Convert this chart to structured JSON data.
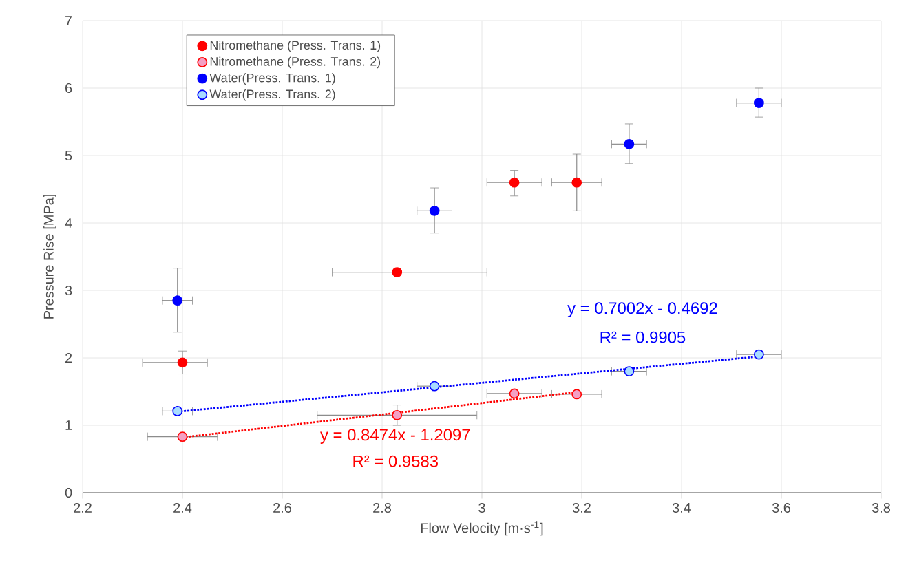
{
  "chart_data": {
    "type": "scatter",
    "xlabel": "Flow Velocity [m·s$^{-1}$]",
    "ylabel": "Pressure Rise [MPa]",
    "xlim": [
      2.2,
      3.8
    ],
    "xticks": [
      2.2,
      2.4,
      2.6,
      2.8,
      3,
      3.2,
      3.4,
      3.6,
      3.8
    ],
    "ylim": [
      0,
      7
    ],
    "yticks": [
      0,
      1,
      2,
      3,
      4,
      5,
      6,
      7
    ],
    "grid": true,
    "legend": "top left",
    "marker": "circle",
    "series": [
      {
        "name": "Nitromethane (Press. Trans. 1)",
        "color": "#ff0000",
        "x": [
          2.4,
          2.83,
          3.065,
          3.19
        ],
        "values": [
          1.93,
          3.27,
          4.6,
          4.6
        ],
        "errors": [
          [
            1.76,
            2.1
          ],
          null,
          [
            4.4,
            4.78
          ],
          [
            4.18,
            5.02
          ]
        ],
        "xerrors": [
          [
            2.32,
            2.45
          ],
          [
            2.7,
            3.01
          ],
          [
            3.01,
            3.12
          ],
          [
            3.14,
            3.24
          ]
        ]
      },
      {
        "name": "Nitromethane (Press. Trans. 2)",
        "color": "#f4a0c4",
        "x": [
          2.4,
          2.83,
          3.065,
          3.19
        ],
        "values": [
          0.83,
          1.15,
          1.47,
          1.46
        ],
        "errors": [
          null,
          [
            1.0,
            1.3
          ],
          null,
          null
        ],
        "xerrors": [
          [
            2.33,
            2.47
          ],
          [
            2.67,
            2.99
          ],
          [
            3.01,
            3.12
          ],
          [
            3.14,
            3.24
          ]
        ]
      },
      {
        "name": "Water(Press. Trans. 1)",
        "color": "#0000ff",
        "x": [
          2.39,
          2.905,
          3.295,
          3.555
        ],
        "values": [
          2.85,
          4.18,
          5.17,
          5.78
        ],
        "errors": [
          [
            2.38,
            3.33
          ],
          [
            3.85,
            4.52
          ],
          [
            4.88,
            5.47
          ],
          [
            5.57,
            6.0
          ]
        ],
        "xerrors": [
          [
            2.36,
            2.42
          ],
          [
            2.87,
            2.94
          ],
          [
            3.26,
            3.33
          ],
          [
            3.51,
            3.6
          ]
        ]
      },
      {
        "name": "Water(Press. Trans. 2)",
        "color": "#a8dcff",
        "x": [
          2.39,
          2.905,
          3.295,
          3.555
        ],
        "values": [
          1.21,
          1.58,
          1.8,
          2.05
        ],
        "xerrors": [
          [
            2.36,
            2.42
          ],
          [
            2.87,
            2.94
          ],
          [
            3.26,
            3.33
          ],
          [
            3.51,
            3.6
          ]
        ]
      },
      {
        "type": "line",
        "color": "#ff0000",
        "line_style": "dotted",
        "marker": "none",
        "x": [
          2.4,
          3.19
        ],
        "values": [
          0.82,
          1.49
        ]
      },
      {
        "type": "line",
        "color": "#0000ff",
        "line_style": "dotted",
        "marker": "none",
        "x": [
          2.39,
          3.555
        ],
        "values": [
          1.2,
          2.02
        ]
      }
    ],
    "annotations": [
      "y = 0.8474x - 1.2097",
      "R² = 0.9583",
      "y = 0.7002x - 0.4692",
      "R² = 0.9905"
    ]
  }
}
